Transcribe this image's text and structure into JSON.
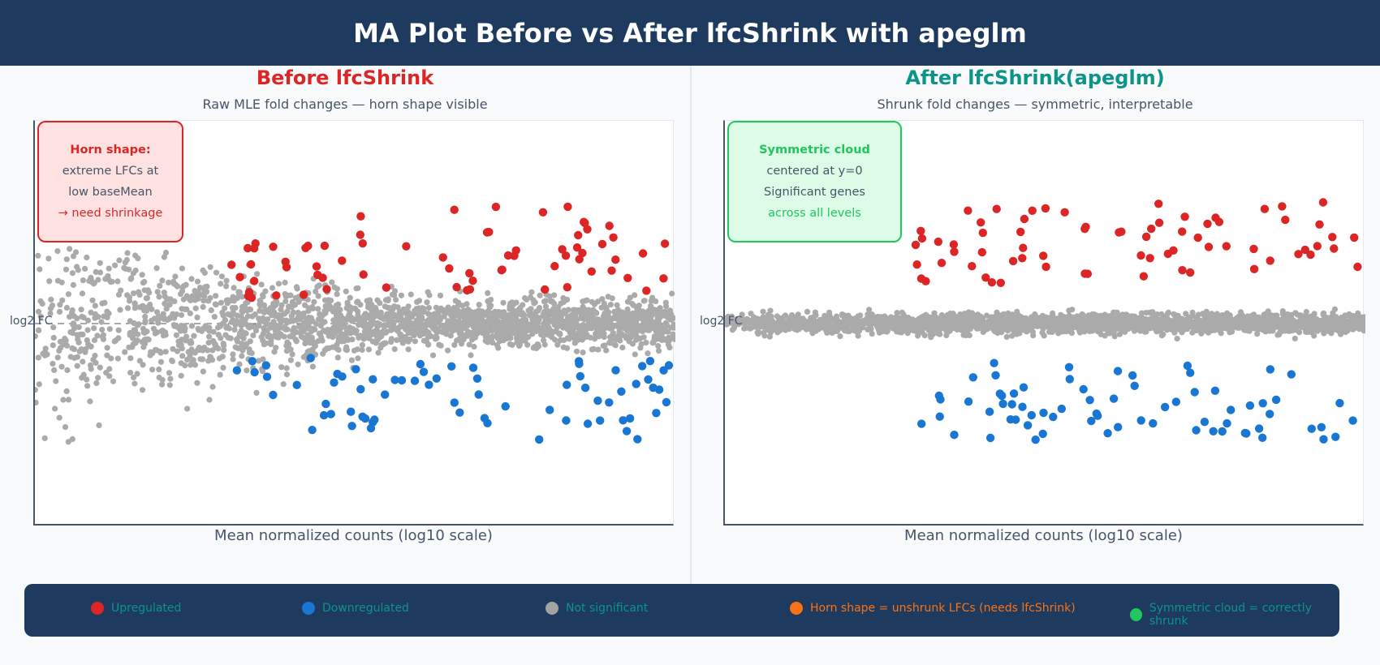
{
  "title": "MA Plot Before vs After lfcShrink with apeglm",
  "chart_data": [
    {
      "type": "scatter",
      "title": "Before lfcShrink",
      "subtitle": "Raw MLE fold changes — horn shape visible",
      "xlabel": "Mean normalized counts (log10 scale)",
      "ylabel": "log2 FC",
      "reference_line_y": 0,
      "note": {
        "title": "Horn shape:",
        "lines": [
          "extreme LFCs at",
          "low baseMean"
        ],
        "action": "→ need shrinkage"
      },
      "series": [
        {
          "name": "Upregulated",
          "color": "#dc2626"
        },
        {
          "name": "Downregulated",
          "color": "#1976d2"
        },
        {
          "name": "Not significant",
          "color": "#aaaaaa"
        }
      ]
    },
    {
      "type": "scatter",
      "title": "After lfcShrink(apeglm)",
      "subtitle": "Shrunk fold changes — symmetric, interpretable",
      "xlabel": "Mean normalized counts (log10 scale)",
      "ylabel": "log2 FC",
      "reference_line_y": 0,
      "note": {
        "title": "Symmetric cloud",
        "lines": [
          "centered at y=0",
          "Significant genes"
        ],
        "action": "across all levels"
      },
      "series": [
        {
          "name": "Upregulated",
          "color": "#dc2626"
        },
        {
          "name": "Downregulated",
          "color": "#1976d2"
        },
        {
          "name": "Not significant",
          "color": "#aaaaaa"
        }
      ]
    }
  ],
  "legend": [
    {
      "label": "Upregulated",
      "color": "#dc2626"
    },
    {
      "label": "Downregulated",
      "color": "#1976d2"
    },
    {
      "label": "Not significant",
      "color": "#a3a3a3"
    },
    {
      "label": "Horn shape = unshrunk LFCs (needs lfcShrink)",
      "color": "#f97316"
    },
    {
      "label": "Symmetric cloud = correctly shrunk",
      "color": "#22c55e"
    }
  ]
}
